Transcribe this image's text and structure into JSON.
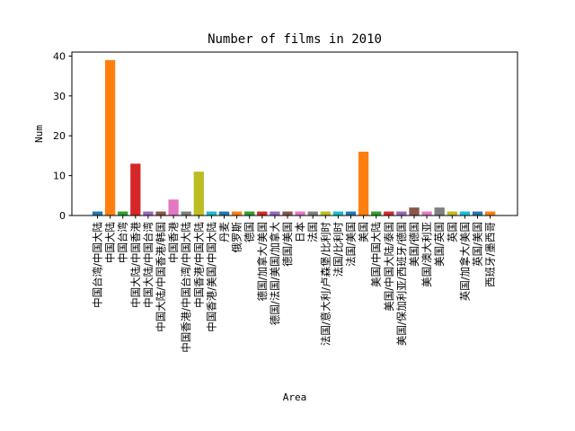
{
  "chart_data": {
    "type": "bar",
    "title": "Number of films in 2010",
    "xlabel": "Area",
    "ylabel": "Num",
    "ylim": [
      0,
      41
    ],
    "yticks": [
      0,
      10,
      20,
      30,
      40
    ],
    "grid": false,
    "categories": [
      "中国台湾/中国大陆",
      "中国大陆",
      "中国台湾",
      "中国大陆/中国香港",
      "中国大陆/中国台湾",
      "中国大陆/中国香港/韩国",
      "中国香港",
      "中国香港/中国台湾/中国大陆",
      "中国香港/中国大陆",
      "中国香港/美国/中国大陆",
      "丹麦",
      "俄罗斯",
      "德国",
      "德国/加拿大/美国",
      "德国/法国/美国/加拿大",
      "德国/美国",
      "日本",
      "法国",
      "法国/意大利/卢森堡/比利时",
      "法国/比利时",
      "法国/美国",
      "美国",
      "美国/中国大陆",
      "美国/中国大陆/泰国",
      "美国/保加利亚/西班牙/德国",
      "美国/德国",
      "美国/澳大利亚",
      "美国/英国",
      "英国",
      "英国/加拿大/美国",
      "英国/美国",
      "西班牙/墨西哥"
    ],
    "values": [
      1,
      39,
      1,
      13,
      1,
      1,
      4,
      1,
      11,
      1,
      1,
      1,
      1,
      1,
      1,
      1,
      1,
      1,
      1,
      1,
      1,
      16,
      1,
      1,
      1,
      2,
      1,
      2,
      1,
      1,
      1,
      1
    ],
    "colors": [
      "#1f77b4",
      "#ff7f0e",
      "#2ca02c",
      "#d62728",
      "#9467bd",
      "#8c564b",
      "#e377c2",
      "#7f7f7f",
      "#bcbd22",
      "#17becf"
    ]
  }
}
